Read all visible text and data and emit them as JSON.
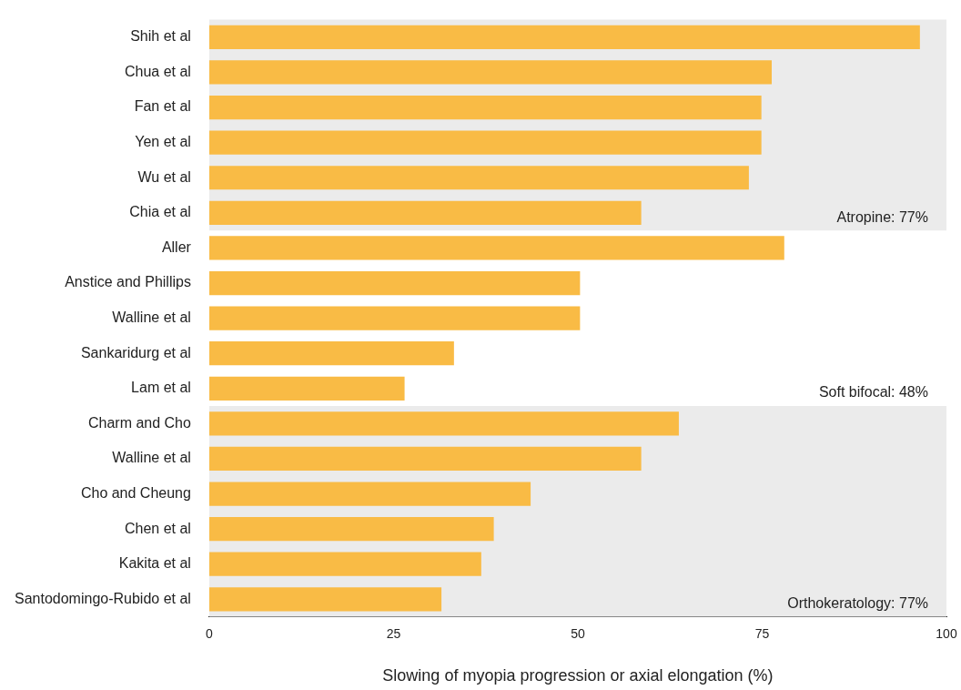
{
  "chart_data": {
    "type": "bar",
    "orientation": "horizontal",
    "categories": [
      "Shih et al",
      "Chua et al",
      "Fan et al",
      "Yen et al",
      "Wu et al",
      "Chia et al",
      "Aller",
      "Anstice and Phillips",
      "Walline et al",
      "Sankaridurg et al",
      "Lam et al",
      "Charm and Cho",
      "Walline et al",
      "Cho and Cheung",
      "Chen et al",
      "Kakita et al",
      "Santodomingo-Rubido et al"
    ],
    "values": [
      96.4,
      76.3,
      74.9,
      74.9,
      73.2,
      58.6,
      78,
      50.3,
      50.3,
      33.2,
      26.5,
      63.7,
      58.6,
      43.6,
      38.6,
      36.9,
      31.5
    ],
    "color": "#f9bb45",
    "xlabel": "Slowing of myopia progression or axial elongation (%)",
    "xlim": [
      0,
      100
    ],
    "xticks": [
      0,
      25,
      50,
      75,
      100
    ],
    "grid": false,
    "legend": false,
    "annotations": [
      "Soft bifocal: 48%"
    ],
    "bands": [
      {
        "axis": "y",
        "from": "Shih et al",
        "to": "Chia et al",
        "label": "Atropine: 77%",
        "color": "#ebebeb"
      },
      {
        "axis": "y",
        "from": "Charm and Cho",
        "to": "Santodomingo-Rubido et al",
        "label": "Orthokeratology: 77%",
        "color": "#ebebeb"
      }
    ]
  }
}
